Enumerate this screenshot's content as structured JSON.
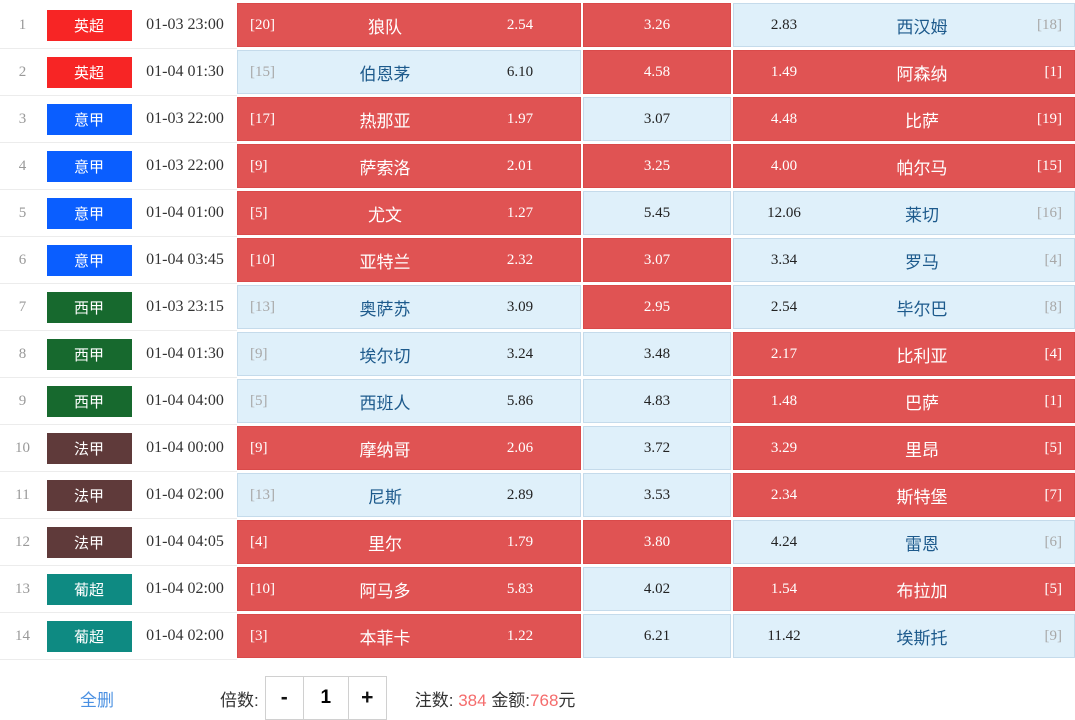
{
  "colors": {
    "selected_bg": "#e05353",
    "unselected_bg": "#dff0fa",
    "hot_number": "#f56c6c",
    "link_blue": "#4a90e2",
    "league_colors": {
      "英超": "#f72525",
      "意甲": "#0a5eff",
      "西甲": "#17692e",
      "法甲": "#5f3a3a",
      "葡超": "#0e8a82"
    }
  },
  "matches": [
    {
      "no": "1",
      "league": "英超",
      "time": "01-03 23:00",
      "home": {
        "rank": "[20]",
        "name": "狼队",
        "odds": "2.54",
        "selected": true
      },
      "draw": {
        "odds": "3.26",
        "selected": true
      },
      "away": {
        "odds": "2.83",
        "name": "西汉姆",
        "rank": "[18]",
        "selected": false
      }
    },
    {
      "no": "2",
      "league": "英超",
      "time": "01-04 01:30",
      "home": {
        "rank": "[15]",
        "name": "伯恩茅",
        "odds": "6.10",
        "selected": false
      },
      "draw": {
        "odds": "4.58",
        "selected": true
      },
      "away": {
        "odds": "1.49",
        "name": "阿森纳",
        "rank": "[1]",
        "selected": true
      }
    },
    {
      "no": "3",
      "league": "意甲",
      "time": "01-03 22:00",
      "home": {
        "rank": "[17]",
        "name": "热那亚",
        "odds": "1.97",
        "selected": true
      },
      "draw": {
        "odds": "3.07",
        "selected": false
      },
      "away": {
        "odds": "4.48",
        "name": "比萨",
        "rank": "[19]",
        "selected": true
      }
    },
    {
      "no": "4",
      "league": "意甲",
      "time": "01-03 22:00",
      "home": {
        "rank": "[9]",
        "name": "萨索洛",
        "odds": "2.01",
        "selected": true
      },
      "draw": {
        "odds": "3.25",
        "selected": true
      },
      "away": {
        "odds": "4.00",
        "name": "帕尔马",
        "rank": "[15]",
        "selected": true
      }
    },
    {
      "no": "5",
      "league": "意甲",
      "time": "01-04 01:00",
      "home": {
        "rank": "[5]",
        "name": "尤文",
        "odds": "1.27",
        "selected": true
      },
      "draw": {
        "odds": "5.45",
        "selected": false
      },
      "away": {
        "odds": "12.06",
        "name": "莱切",
        "rank": "[16]",
        "selected": false
      }
    },
    {
      "no": "6",
      "league": "意甲",
      "time": "01-04 03:45",
      "home": {
        "rank": "[10]",
        "name": "亚特兰",
        "odds": "2.32",
        "selected": true
      },
      "draw": {
        "odds": "3.07",
        "selected": true
      },
      "away": {
        "odds": "3.34",
        "name": "罗马",
        "rank": "[4]",
        "selected": false
      }
    },
    {
      "no": "7",
      "league": "西甲",
      "time": "01-03 23:15",
      "home": {
        "rank": "[13]",
        "name": "奥萨苏",
        "odds": "3.09",
        "selected": false
      },
      "draw": {
        "odds": "2.95",
        "selected": true
      },
      "away": {
        "odds": "2.54",
        "name": "毕尔巴",
        "rank": "[8]",
        "selected": false
      }
    },
    {
      "no": "8",
      "league": "西甲",
      "time": "01-04 01:30",
      "home": {
        "rank": "[9]",
        "name": "埃尔切",
        "odds": "3.24",
        "selected": false
      },
      "draw": {
        "odds": "3.48",
        "selected": false
      },
      "away": {
        "odds": "2.17",
        "name": "比利亚",
        "rank": "[4]",
        "selected": true
      }
    },
    {
      "no": "9",
      "league": "西甲",
      "time": "01-04 04:00",
      "home": {
        "rank": "[5]",
        "name": "西班人",
        "odds": "5.86",
        "selected": false
      },
      "draw": {
        "odds": "4.83",
        "selected": false
      },
      "away": {
        "odds": "1.48",
        "name": "巴萨",
        "rank": "[1]",
        "selected": true
      }
    },
    {
      "no": "10",
      "league": "法甲",
      "time": "01-04 00:00",
      "home": {
        "rank": "[9]",
        "name": "摩纳哥",
        "odds": "2.06",
        "selected": true
      },
      "draw": {
        "odds": "3.72",
        "selected": false
      },
      "away": {
        "odds": "3.29",
        "name": "里昂",
        "rank": "[5]",
        "selected": true
      }
    },
    {
      "no": "11",
      "league": "法甲",
      "time": "01-04 02:00",
      "home": {
        "rank": "[13]",
        "name": "尼斯",
        "odds": "2.89",
        "selected": false
      },
      "draw": {
        "odds": "3.53",
        "selected": false
      },
      "away": {
        "odds": "2.34",
        "name": "斯特堡",
        "rank": "[7]",
        "selected": true
      }
    },
    {
      "no": "12",
      "league": "法甲",
      "time": "01-04 04:05",
      "home": {
        "rank": "[4]",
        "name": "里尔",
        "odds": "1.79",
        "selected": true
      },
      "draw": {
        "odds": "3.80",
        "selected": true
      },
      "away": {
        "odds": "4.24",
        "name": "雷恩",
        "rank": "[6]",
        "selected": false
      }
    },
    {
      "no": "13",
      "league": "葡超",
      "time": "01-04 02:00",
      "home": {
        "rank": "[10]",
        "name": "阿马多",
        "odds": "5.83",
        "selected": true
      },
      "draw": {
        "odds": "4.02",
        "selected": false
      },
      "away": {
        "odds": "1.54",
        "name": "布拉加",
        "rank": "[5]",
        "selected": true
      }
    },
    {
      "no": "14",
      "league": "葡超",
      "time": "01-04 02:00",
      "home": {
        "rank": "[3]",
        "name": "本菲卡",
        "odds": "1.22",
        "selected": true
      },
      "draw": {
        "odds": "6.21",
        "selected": false
      },
      "away": {
        "odds": "11.42",
        "name": "埃斯托",
        "rank": "[9]",
        "selected": false
      }
    }
  ],
  "footer": {
    "clear_all_label": "全删",
    "multiplier_label": "倍数:",
    "minus_label": "-",
    "multiplier_value": "1",
    "plus_label": "+",
    "bet_count_label": "注数:",
    "bet_count": "384",
    "amount_label": "金额:",
    "amount": "768",
    "currency": "元"
  }
}
